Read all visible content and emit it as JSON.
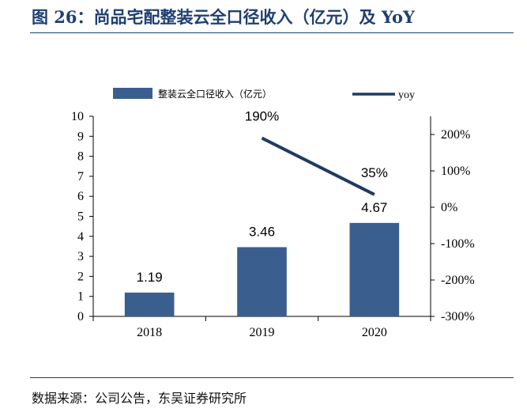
{
  "page": {
    "title": "图 26：尚品宅配整装云全口径收入（亿元）及 YoY",
    "source": "数据来源：公司公告，东吴证券研究所"
  },
  "colors": {
    "bar": "#3a5f8e",
    "line": "#1f3b63",
    "title": "#1f3f73",
    "axis": "#000000"
  },
  "chart_data": {
    "type": "bar",
    "categories": [
      "2018",
      "2019",
      "2020"
    ],
    "series": [
      {
        "name": "整装云全口径收入（亿元）",
        "kind": "bar",
        "axis": "left",
        "values": [
          1.19,
          3.46,
          4.67
        ],
        "labels": [
          "1.19",
          "3.46",
          "4.67"
        ]
      },
      {
        "name": "yoy",
        "kind": "line",
        "axis": "right",
        "values": [
          null,
          190,
          35
        ],
        "labels": [
          "",
          "190%",
          "35%"
        ]
      }
    ],
    "left_axis": {
      "ylim": [
        0,
        10
      ],
      "ticks": [
        "0",
        "1",
        "2",
        "3",
        "4",
        "5",
        "6",
        "7",
        "8",
        "9",
        "10"
      ]
    },
    "right_axis": {
      "ylim": [
        -300,
        250
      ],
      "ticks": [
        "-300%",
        "-200%",
        "-100%",
        "0%",
        "100%",
        "200%"
      ],
      "tick_values": [
        -300,
        -200,
        -100,
        0,
        100,
        200
      ]
    },
    "legend": {
      "position": "top",
      "entries": [
        {
          "label": "整装云全口径收入（亿元）"
        },
        {
          "label": "yoy"
        }
      ]
    },
    "grid": false
  }
}
